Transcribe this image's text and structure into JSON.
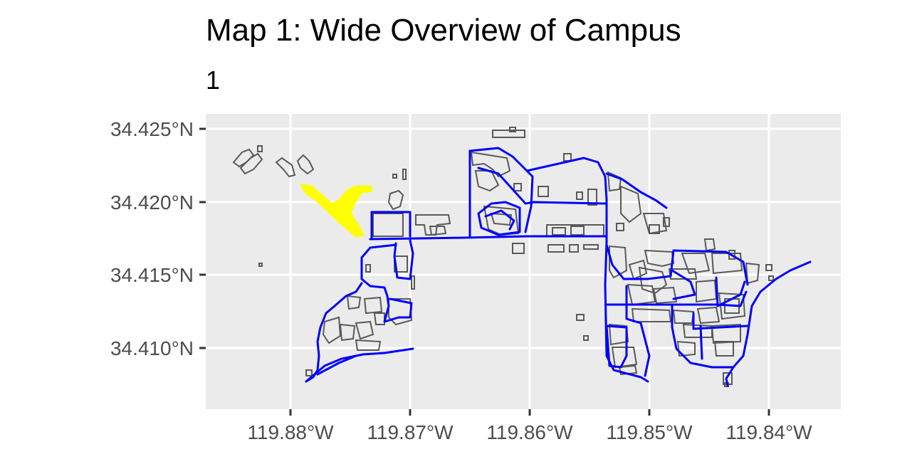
{
  "map": {
    "title": "Map 1: Wide Overview of Campus",
    "subtitle": "1",
    "y_axis": {
      "range": [
        34.4055,
        34.4262
      ],
      "ticks": [
        {
          "value": 34.425,
          "label": "34.425°N"
        },
        {
          "value": 34.42,
          "label": "34.420°N"
        },
        {
          "value": 34.415,
          "label": "34.415°N"
        },
        {
          "value": 34.41,
          "label": "34.410°N"
        }
      ]
    },
    "x_axis": {
      "range": [
        -119.887,
        -119.834
      ],
      "ticks": [
        {
          "value": -119.88,
          "label": "119.88°W"
        },
        {
          "value": -119.87,
          "label": "119.87°W"
        },
        {
          "value": -119.86,
          "label": "119.86°W"
        },
        {
          "value": -119.85,
          "label": "119.85°W"
        },
        {
          "value": -119.84,
          "label": "119.84°W"
        }
      ]
    },
    "layers": [
      {
        "name": "buildings",
        "stroke": "#595959"
      },
      {
        "name": "paths",
        "stroke": "#0000ff"
      },
      {
        "name": "highlight area",
        "fill": "#ffff00"
      }
    ],
    "colors": {
      "panel_background": "#ebebeb",
      "grid": "#ffffff",
      "axis_text": "#4d4d4d"
    }
  }
}
